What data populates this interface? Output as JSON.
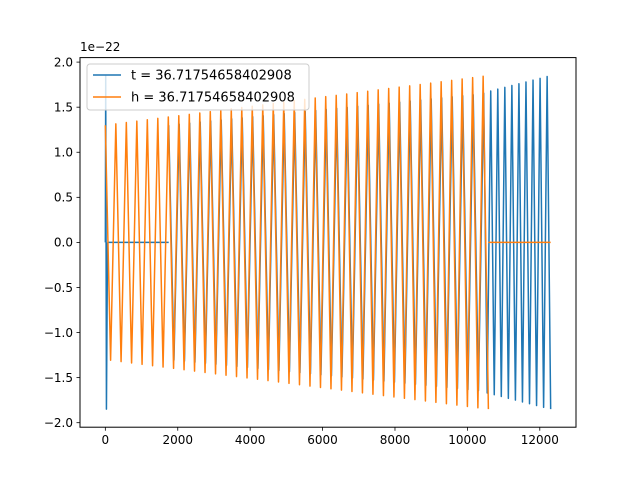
{
  "chart_data": {
    "type": "line",
    "title": "",
    "xlabel": "",
    "ylabel": "",
    "y_offset_label": "1e−22",
    "xlim": [
      -700,
      13000
    ],
    "ylim": [
      -2.05,
      2.05
    ],
    "x_ticks": [
      0,
      2000,
      4000,
      6000,
      8000,
      10000,
      12000
    ],
    "y_ticks": [
      -2.0,
      -1.5,
      -1.0,
      -0.5,
      0.0,
      0.5,
      1.0,
      1.5,
      2.0
    ],
    "x_tick_labels": [
      "0",
      "2000",
      "4000",
      "6000",
      "8000",
      "10000",
      "12000"
    ],
    "y_tick_labels": [
      "−2.0",
      "−1.5",
      "−1.0",
      "−0.5",
      "0.0",
      "0.5",
      "1.0",
      "1.5",
      "2.0"
    ],
    "grid": false,
    "legend_position": "upper-left",
    "series": [
      {
        "name": "t = 36.71754658402908",
        "color": "#1f77b4",
        "segments": [
          {
            "kind": "spike",
            "x_start": 0,
            "x_end": 60,
            "amp_start": 1.85,
            "amp_end": 1.85
          },
          {
            "kind": "flat",
            "x_start": 60,
            "x_end": 1750
          },
          {
            "kind": "osc",
            "x_start": 1750,
            "x_end": 10450,
            "amp_start": 1.3,
            "amp_end": 1.65,
            "period": 145
          },
          {
            "kind": "osc",
            "x_start": 10450,
            "x_end": 12300,
            "amp_start": 1.66,
            "amp_end": 1.85,
            "period": 95
          }
        ]
      },
      {
        "name": "h = 36.71754658402908",
        "color": "#ff7f0e",
        "segments": [
          {
            "kind": "osc",
            "x_start": 0,
            "x_end": 10580,
            "amp_start": 1.3,
            "amp_end": 1.85,
            "period": 145
          },
          {
            "kind": "flat",
            "x_start": 10580,
            "x_end": 12300
          }
        ]
      }
    ]
  }
}
